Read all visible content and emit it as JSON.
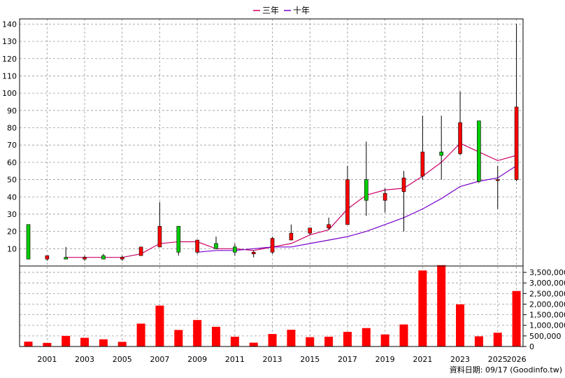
{
  "legend": [
    {
      "label": "三年",
      "color": "#cc0066"
    },
    {
      "label": "十年",
      "color": "#7700cc"
    }
  ],
  "footer_text": "資料日期: 09/17  (Goodinfo.tw)",
  "colors": {
    "up": "#ff0000",
    "down": "#00cc00",
    "volume": "#ff0000",
    "grid": "#999999"
  },
  "chart_data": [
    {
      "type": "candlestick",
      "years": [
        2000,
        2001,
        2002,
        2003,
        2004,
        2005,
        2006,
        2007,
        2008,
        2009,
        2010,
        2011,
        2012,
        2013,
        2014,
        2015,
        2016,
        2017,
        2018,
        2019,
        2020,
        2021,
        2022,
        2023,
        2024,
        2025,
        2026
      ],
      "x_tick_labels": [
        "2001",
        "2003",
        "2005",
        "2007",
        "2009",
        "2011",
        "2013",
        "2015",
        "2017",
        "2019",
        "2021",
        "2023",
        "2025",
        "2026"
      ],
      "ohlc": [
        {
          "o": 24,
          "h": 24,
          "l": 4,
          "c": 4
        },
        {
          "o": 4,
          "h": 6,
          "l": 3,
          "c": 6
        },
        {
          "o": 5,
          "h": 11,
          "l": 4,
          "c": 4
        },
        {
          "o": 4,
          "h": 6,
          "l": 3,
          "c": 5
        },
        {
          "o": 6,
          "h": 7,
          "l": 4,
          "c": 4
        },
        {
          "o": 4,
          "h": 6,
          "l": 3,
          "c": 5
        },
        {
          "o": 6,
          "h": 11,
          "l": 6,
          "c": 11
        },
        {
          "o": 11,
          "h": 37,
          "l": 11,
          "c": 23
        },
        {
          "o": 23,
          "h": 23,
          "l": 6,
          "c": 8
        },
        {
          "o": 8,
          "h": 15,
          "l": 7,
          "c": 15
        },
        {
          "o": 13,
          "h": 17,
          "l": 10,
          "c": 10
        },
        {
          "o": 11,
          "h": 13,
          "l": 6,
          "c": 8
        },
        {
          "o": 7,
          "h": 9,
          "l": 5,
          "c": 8
        },
        {
          "o": 8,
          "h": 17,
          "l": 7,
          "c": 16
        },
        {
          "o": 15,
          "h": 24,
          "l": 15,
          "c": 19
        },
        {
          "o": 19,
          "h": 22,
          "l": 18,
          "c": 22
        },
        {
          "o": 22,
          "h": 28,
          "l": 21,
          "c": 24
        },
        {
          "o": 24,
          "h": 58,
          "l": 24,
          "c": 50
        },
        {
          "o": 50,
          "h": 72,
          "l": 29,
          "c": 38
        },
        {
          "o": 38,
          "h": 45,
          "l": 31,
          "c": 42
        },
        {
          "o": 43,
          "h": 55,
          "l": 20,
          "c": 51
        },
        {
          "o": 52,
          "h": 87,
          "l": 50,
          "c": 66
        },
        {
          "o": 66,
          "h": 87,
          "l": 50,
          "c": 64
        },
        {
          "o": 65,
          "h": 101,
          "l": 64,
          "c": 83
        },
        {
          "o": 84,
          "h": 84,
          "l": 48,
          "c": 49
        },
        {
          "o": 50,
          "h": 58,
          "l": 33,
          "c": 50
        },
        {
          "o": 50,
          "h": 140,
          "l": 49,
          "c": 92
        }
      ],
      "ma_3yr": [
        null,
        null,
        5,
        5,
        5,
        5,
        7,
        13,
        14,
        14,
        10,
        10,
        9,
        11,
        13,
        18,
        21,
        33,
        41,
        44,
        45,
        52,
        60,
        71,
        66,
        61,
        64
      ],
      "ma_10yr": [
        null,
        null,
        null,
        null,
        null,
        null,
        null,
        null,
        null,
        8,
        9,
        9,
        10,
        11,
        11,
        13,
        15,
        17,
        20,
        24,
        28,
        33,
        39,
        46,
        49,
        51,
        58
      ],
      "yaxis_ticks": [
        10,
        20,
        30,
        40,
        50,
        60,
        70,
        80,
        90,
        100,
        110,
        120,
        130,
        140
      ],
      "ylim": [
        0,
        143
      ]
    },
    {
      "type": "bar",
      "values": [
        230000,
        170000,
        500000,
        410000,
        340000,
        220000,
        1080000,
        1930000,
        780000,
        1250000,
        930000,
        460000,
        180000,
        590000,
        790000,
        440000,
        460000,
        690000,
        870000,
        570000,
        1040000,
        3590000,
        3840000,
        1990000,
        480000,
        650000,
        2620000
      ],
      "yaxis_tick_labels": [
        "0",
        "500,000",
        "1,000,000",
        "1,500,000",
        "2,000,000",
        "2,500,000",
        "3,000,000",
        "3,500,000"
      ],
      "ylim": [
        0,
        3800000
      ]
    }
  ]
}
